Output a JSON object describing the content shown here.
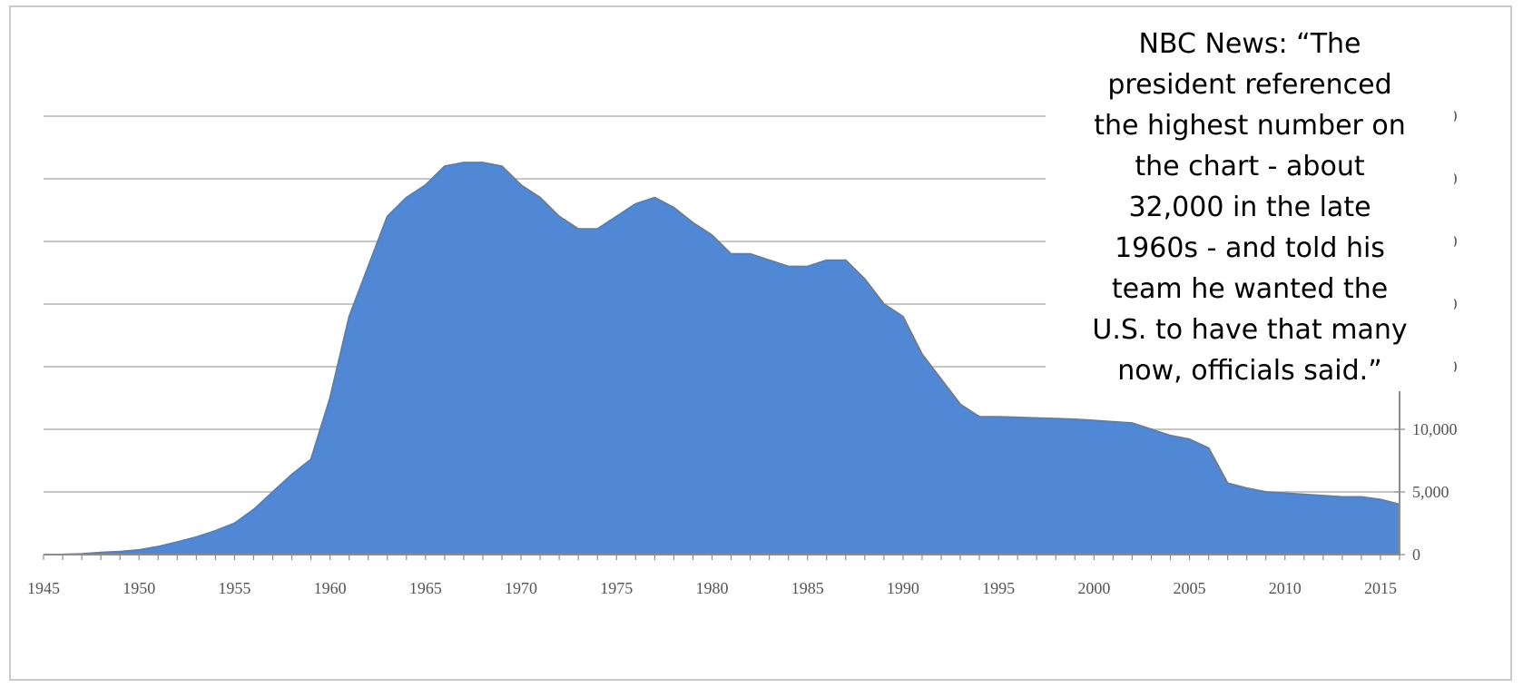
{
  "chart_data": {
    "type": "area",
    "title": "",
    "xlabel": "",
    "ylabel": "",
    "x_ticks": [
      "1945",
      "1950",
      "1955",
      "1960",
      "1965",
      "1970",
      "1975",
      "1980",
      "1985",
      "1990",
      "1995",
      "2000",
      "2005",
      "2010",
      "2015"
    ],
    "y_ticks": [
      "0",
      "5,000",
      "10,000",
      "15,000",
      "20,000",
      "25,000",
      "30,000",
      "35,000"
    ],
    "xlim": [
      1945,
      2016
    ],
    "ylim": [
      0,
      35000
    ],
    "y_axis_side": "right",
    "grid": true,
    "series": [
      {
        "color": "#5088d6",
        "x": [
          1945,
          1946,
          1947,
          1948,
          1949,
          1950,
          1951,
          1952,
          1953,
          1954,
          1955,
          1956,
          1957,
          1958,
          1959,
          1960,
          1961,
          1962,
          1963,
          1964,
          1965,
          1966,
          1967,
          1968,
          1969,
          1970,
          1971,
          1972,
          1973,
          1974,
          1975,
          1976,
          1977,
          1978,
          1979,
          1980,
          1981,
          1982,
          1983,
          1984,
          1985,
          1986,
          1987,
          1988,
          1989,
          1990,
          1991,
          1992,
          1993,
          1994,
          1995,
          1996,
          1997,
          1998,
          1999,
          2000,
          2001,
          2002,
          2003,
          2004,
          2005,
          2006,
          2007,
          2008,
          2009,
          2010,
          2011,
          2012,
          2013,
          2014,
          2015,
          2016
        ],
        "values": [
          2,
          9,
          50,
          170,
          240,
          370,
          640,
          1000,
          1400,
          1900,
          2500,
          3600,
          5000,
          6400,
          7600,
          12500,
          19000,
          23000,
          27000,
          28500,
          29500,
          31000,
          31300,
          31300,
          31000,
          29500,
          28500,
          27000,
          26000,
          26000,
          27000,
          28000,
          28500,
          27700,
          26500,
          25500,
          24000,
          24000,
          23500,
          23000,
          23000,
          23500,
          23500,
          22000,
          20000,
          19000,
          16000,
          14000,
          12000,
          11000,
          11000,
          10950,
          10900,
          10850,
          10800,
          10700,
          10600,
          10500,
          10000,
          9500,
          9200,
          8500,
          5700,
          5300,
          5000,
          4900,
          4800,
          4700,
          4600,
          4600,
          4400,
          4000
        ]
      }
    ]
  },
  "quote": {
    "lines": [
      "NBC News: “The",
      "president referenced",
      "the highest number on",
      "the chart - about",
      "32,000 in the late",
      "1960s - and told his",
      "team he wanted the",
      "U.S. to have that many",
      "now, officials said.”"
    ]
  }
}
